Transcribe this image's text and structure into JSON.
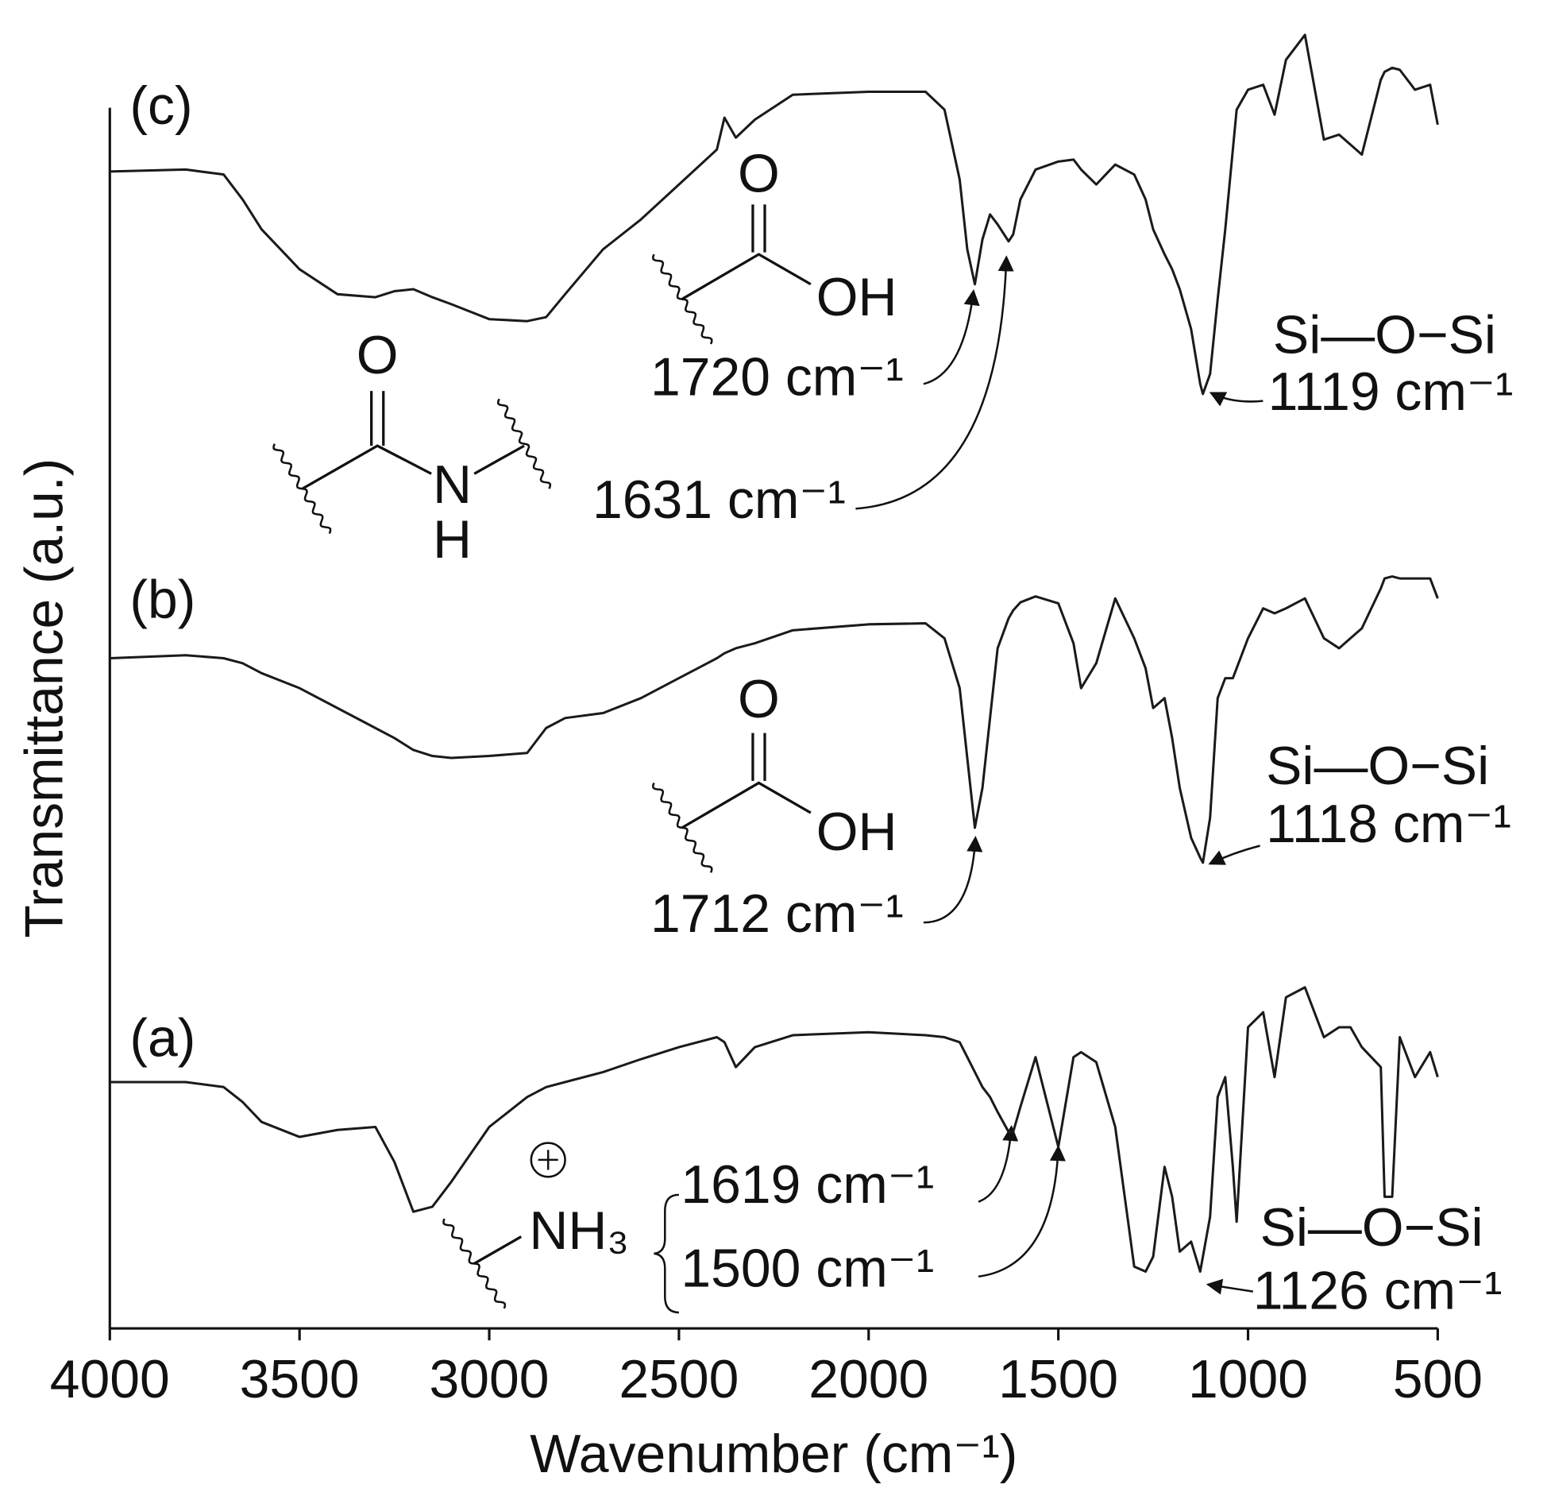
{
  "chart_data": {
    "type": "line",
    "x_label": "Wavenumber (cm⁻¹)",
    "y_label": "Transmittance (a.u.)",
    "xlim": [
      4000,
      500
    ],
    "xticks": [
      4000,
      3500,
      3000,
      2500,
      2000,
      1500,
      1000,
      500
    ],
    "ylim": [
      0,
      1300
    ],
    "x": [
      4000,
      3800,
      3700,
      3650,
      3600,
      3500,
      3400,
      3300,
      3250,
      3200,
      3150,
      3100,
      3000,
      2900,
      2850,
      2800,
      2700,
      2600,
      2500,
      2400,
      2380,
      2350,
      2300,
      2200,
      2000,
      1850,
      1800,
      1760,
      1740,
      1720,
      1700,
      1680,
      1660,
      1631,
      1619,
      1600,
      1560,
      1500,
      1460,
      1440,
      1400,
      1350,
      1300,
      1270,
      1250,
      1220,
      1200,
      1180,
      1150,
      1126,
      1119,
      1100,
      1080,
      1060,
      1040,
      1030,
      1000,
      960,
      930,
      900,
      850,
      800,
      760,
      730,
      700,
      650,
      640,
      620,
      600,
      560,
      520,
      500
    ],
    "series": [
      {
        "name": "(a)",
        "color": "#1a1a1a",
        "values": [
          245,
          245,
          240,
          225,
          205,
          190,
          197,
          200,
          165,
          115,
          120,
          145,
          200,
          230,
          240,
          245,
          255,
          268,
          280,
          290,
          285,
          260,
          280,
          292,
          295,
          292,
          290,
          285,
          270,
          255,
          240,
          230,
          215,
          195,
          195,
          220,
          270,
          180,
          270,
          275,
          265,
          200,
          60,
          55,
          70,
          160,
          130,
          75,
          85,
          55,
          70,
          110,
          230,
          250,
          160,
          105,
          300,
          315,
          250,
          330,
          340,
          290,
          300,
          300,
          280,
          260,
          130,
          130,
          290,
          250,
          275,
          250
        ]
      },
      {
        "name": "(b)",
        "color": "#1a1a1a",
        "values": [
          670,
          673,
          670,
          665,
          655,
          640,
          620,
          600,
          590,
          578,
          572,
          570,
          572,
          575,
          600,
          610,
          615,
          630,
          650,
          670,
          675,
          680,
          685,
          698,
          704,
          705,
          690,
          640,
          570,
          500,
          540,
          610,
          680,
          710,
          718,
          726,
          732,
          725,
          685,
          640,
          665,
          730,
          690,
          660,
          620,
          630,
          590,
          540,
          490,
          470,
          465,
          510,
          630,
          650,
          650,
          660,
          690,
          720,
          715,
          720,
          730,
          690,
          680,
          690,
          700,
          740,
          750,
          752,
          750,
          750,
          750,
          730
        ]
      },
      {
        "name": "(c)",
        "color": "#1a1a1a",
        "values": [
          1158,
          1160,
          1155,
          1130,
          1100,
          1060,
          1035,
          1032,
          1038,
          1040,
          1032,
          1025,
          1010,
          1008,
          1012,
          1035,
          1080,
          1110,
          1145,
          1180,
          1212,
          1192,
          1210,
          1235,
          1238,
          1238,
          1220,
          1150,
          1080,
          1045,
          1090,
          1115,
          1105,
          1088,
          1095,
          1130,
          1160,
          1168,
          1170,
          1160,
          1145,
          1165,
          1155,
          1130,
          1100,
          1075,
          1060,
          1040,
          1000,
          945,
          935,
          955,
          1030,
          1100,
          1180,
          1220,
          1240,
          1245,
          1215,
          1270,
          1295,
          1190,
          1195,
          1185,
          1175,
          1250,
          1258,
          1262,
          1260,
          1240,
          1245,
          1205
        ]
      }
    ],
    "annotations": [
      "1720 cm⁻¹",
      "1631 cm⁻¹",
      "Si—O−Si",
      "1119 cm⁻¹",
      "1712 cm⁻¹",
      "Si—O−Si",
      "1118 cm⁻¹",
      "1619 cm⁻¹",
      "1500 cm⁻¹",
      "Si—O−Si",
      "1126 cm⁻¹"
    ],
    "structure_labels": [
      "O",
      "OH",
      "O",
      "N",
      "H",
      "O",
      "OH",
      "NH₃"
    ]
  }
}
